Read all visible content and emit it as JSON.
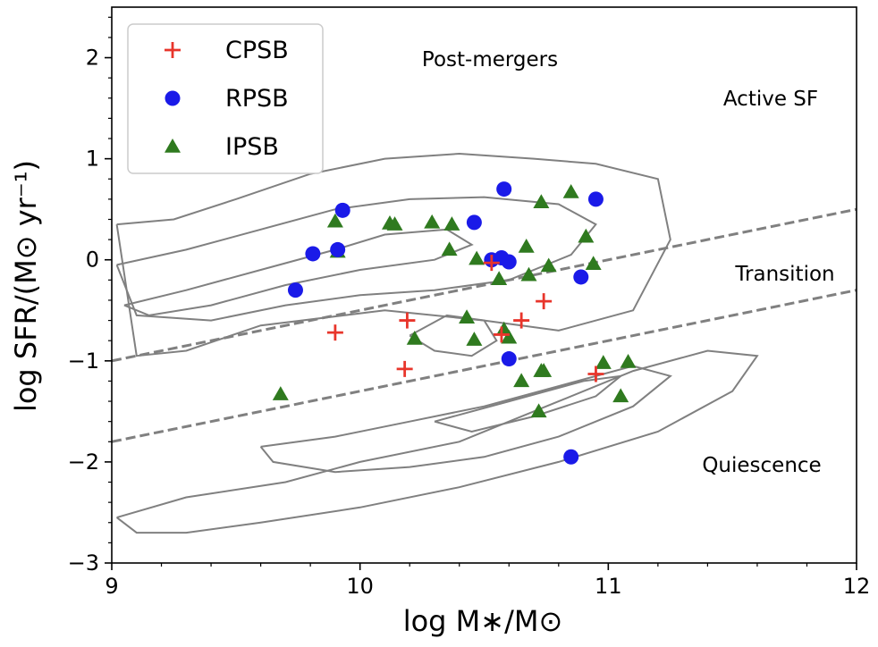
{
  "chart_data": {
    "type": "scatter",
    "title": "Post-mergers",
    "xlabel": "log M∗/M⊙",
    "ylabel": "log SFR/(M⊙ yr⁻¹)",
    "xlim": [
      9,
      12
    ],
    "ylim": [
      -3,
      2.5
    ],
    "xticks": [
      9,
      10,
      11,
      12
    ],
    "xtick_labels": [
      "9",
      "10",
      "11",
      "12"
    ],
    "yticks": [
      -3,
      -2,
      -1,
      0,
      1,
      2
    ],
    "ytick_labels": [
      "−3",
      "−2",
      "−1",
      "0",
      "1",
      "2"
    ],
    "grid": false,
    "legend_position": "top-left",
    "annotations": {
      "active": "Active SF",
      "transition": "Transition",
      "quiescence": "Quiescence"
    },
    "series": [
      {
        "name": "CPSB",
        "marker": "plus",
        "color": "#e8352b",
        "points": [
          [
            9.9,
            -0.72
          ],
          [
            10.18,
            -1.08
          ],
          [
            10.19,
            -0.6
          ],
          [
            10.53,
            -0.03
          ],
          [
            10.57,
            -0.74
          ],
          [
            10.65,
            -0.6
          ],
          [
            10.74,
            -0.41
          ],
          [
            10.95,
            -1.13
          ]
        ]
      },
      {
        "name": "RPSB",
        "marker": "circle",
        "color": "#1a1ae8",
        "points": [
          [
            9.74,
            -0.3
          ],
          [
            9.81,
            0.06
          ],
          [
            9.91,
            0.1
          ],
          [
            9.93,
            0.49
          ],
          [
            10.46,
            0.37
          ],
          [
            10.53,
            0.0
          ],
          [
            10.57,
            0.02
          ],
          [
            10.58,
            0.7
          ],
          [
            10.6,
            -0.02
          ],
          [
            10.6,
            -0.98
          ],
          [
            10.85,
            -1.95
          ],
          [
            10.89,
            -0.17
          ],
          [
            10.95,
            0.6
          ]
        ]
      },
      {
        "name": "IPSB",
        "marker": "triangle",
        "color": "#2f7a1f",
        "points": [
          [
            9.68,
            -1.33
          ],
          [
            9.9,
            0.38
          ],
          [
            9.91,
            0.08
          ],
          [
            10.12,
            0.36
          ],
          [
            10.14,
            0.35
          ],
          [
            10.22,
            -0.78
          ],
          [
            10.29,
            0.37
          ],
          [
            10.36,
            0.1
          ],
          [
            10.37,
            0.35
          ],
          [
            10.43,
            -0.57
          ],
          [
            10.46,
            -0.79
          ],
          [
            10.47,
            0.01
          ],
          [
            10.56,
            -0.19
          ],
          [
            10.58,
            -0.69
          ],
          [
            10.6,
            -0.77
          ],
          [
            10.65,
            -1.2
          ],
          [
            10.67,
            0.13
          ],
          [
            10.68,
            -0.15
          ],
          [
            10.72,
            -1.5
          ],
          [
            10.73,
            -1.1
          ],
          [
            10.73,
            0.57
          ],
          [
            10.74,
            -1.1
          ],
          [
            10.76,
            -0.06
          ],
          [
            10.85,
            0.67
          ],
          [
            10.91,
            0.23
          ],
          [
            10.94,
            -0.04
          ],
          [
            10.98,
            -1.02
          ],
          [
            11.05,
            -1.35
          ],
          [
            11.08,
            -1.01
          ]
        ]
      }
    ],
    "reference_lines": [
      {
        "style": "dashed",
        "color": "#808080",
        "x": [
          9,
          12
        ],
        "y": [
          -1.0,
          0.5
        ]
      },
      {
        "style": "dashed",
        "color": "#808080",
        "x": [
          9,
          12
        ],
        "y": [
          -1.8,
          -0.3
        ]
      }
    ],
    "contours": {
      "color": "#808080",
      "levels": [
        {
          "x": [
            9.02,
            9.25,
            9.5,
            9.8,
            10.1,
            10.4,
            10.7,
            10.95,
            11.2,
            11.25,
            11.1,
            10.8,
            10.5,
            10.1,
            9.6,
            9.3,
            9.1,
            9.02
          ],
          "y": [
            0.35,
            0.4,
            0.6,
            0.85,
            1.0,
            1.05,
            1.0,
            0.95,
            0.8,
            0.2,
            -0.5,
            -0.7,
            -0.6,
            -0.5,
            -0.65,
            -0.9,
            -0.95,
            0.35
          ]
        },
        {
          "x": [
            9.02,
            9.3,
            9.6,
            9.9,
            10.2,
            10.5,
            10.8,
            10.95,
            10.85,
            10.6,
            10.3,
            10.0,
            9.7,
            9.4,
            9.1,
            9.02
          ],
          "y": [
            -0.05,
            0.1,
            0.3,
            0.5,
            0.6,
            0.62,
            0.55,
            0.35,
            0.05,
            -0.2,
            -0.3,
            -0.35,
            -0.45,
            -0.6,
            -0.55,
            -0.05
          ]
        },
        {
          "x": [
            9.05,
            9.3,
            9.6,
            9.9,
            10.1,
            10.35,
            10.45,
            10.3,
            10.0,
            9.7,
            9.4,
            9.15,
            9.05
          ],
          "y": [
            -0.45,
            -0.3,
            -0.1,
            0.1,
            0.25,
            0.3,
            0.15,
            0.0,
            -0.1,
            -0.25,
            -0.45,
            -0.55,
            -0.45
          ]
        },
        {
          "x": [
            9.02,
            9.3,
            9.7,
            10.0,
            10.4,
            10.8,
            11.1,
            11.4,
            11.6,
            11.5,
            11.2,
            10.8,
            10.4,
            10.0,
            9.6,
            9.3,
            9.1,
            9.02
          ],
          "y": [
            -2.55,
            -2.35,
            -2.2,
            -2.0,
            -1.8,
            -1.4,
            -1.1,
            -0.9,
            -0.95,
            -1.3,
            -1.7,
            -2.0,
            -2.25,
            -2.45,
            -2.6,
            -2.7,
            -2.7,
            -2.55
          ]
        },
        {
          "x": [
            9.6,
            9.9,
            10.2,
            10.5,
            10.8,
            11.1,
            11.25,
            11.1,
            10.8,
            10.5,
            10.2,
            9.9,
            9.65,
            9.6
          ],
          "y": [
            -1.85,
            -1.75,
            -1.6,
            -1.45,
            -1.25,
            -1.05,
            -1.15,
            -1.45,
            -1.75,
            -1.95,
            -2.05,
            -2.1,
            -2.0,
            -1.85
          ]
        },
        {
          "x": [
            10.3,
            10.6,
            10.9,
            11.05,
            10.95,
            10.7,
            10.45,
            10.3
          ],
          "y": [
            -1.6,
            -1.4,
            -1.2,
            -1.15,
            -1.35,
            -1.55,
            -1.7,
            -1.6
          ]
        },
        {
          "x": [
            10.2,
            10.35,
            10.5,
            10.55,
            10.45,
            10.3,
            10.2
          ],
          "y": [
            -0.75,
            -0.55,
            -0.6,
            -0.8,
            -0.95,
            -0.9,
            -0.75
          ]
        }
      ]
    }
  }
}
